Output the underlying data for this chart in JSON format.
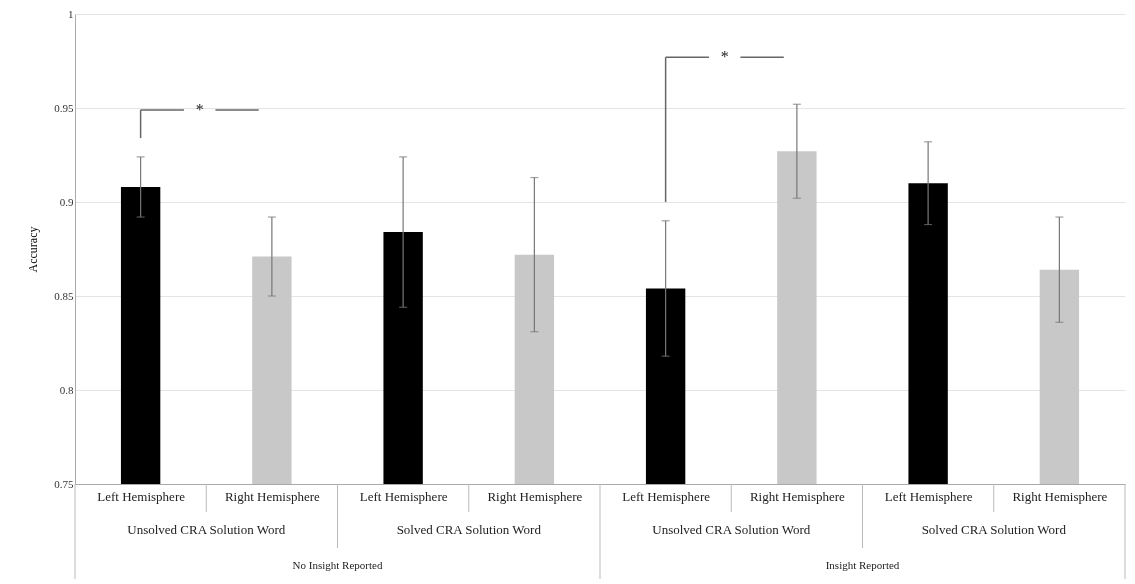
{
  "chart_data": {
    "type": "bar",
    "ylabel": "Accuracy",
    "categories": [
      "Left Hemisphere",
      "Right Hemisphere",
      "Left Hemisphere",
      "Right Hemisphere",
      "Left Hemisphere",
      "Right Hemisphere",
      "Left Hemisphere",
      "Right Hemisphere"
    ],
    "values": [
      0.908,
      0.871,
      0.884,
      0.872,
      0.854,
      0.927,
      0.91,
      0.864
    ],
    "errors": [
      0.016,
      0.021,
      0.04,
      0.041,
      0.036,
      0.025,
      0.022,
      0.028
    ],
    "colors": [
      "#000000",
      "#c8c8c8",
      "#000000",
      "#c8c8c8",
      "#000000",
      "#c8c8c8",
      "#000000",
      "#c8c8c8"
    ],
    "ylim": [
      0.75,
      1
    ],
    "yticks": [
      0.75,
      0.8,
      0.85,
      0.9,
      0.95,
      1
    ],
    "grid": "y",
    "annotations": [
      "Unsolved CRA Solution Word",
      "Solved CRA Solution Word",
      "Unsolved CRA Solution Word",
      "Solved CRA Solution Word",
      "No Insight Reported",
      "Insight Reported",
      "*",
      "*"
    ]
  }
}
